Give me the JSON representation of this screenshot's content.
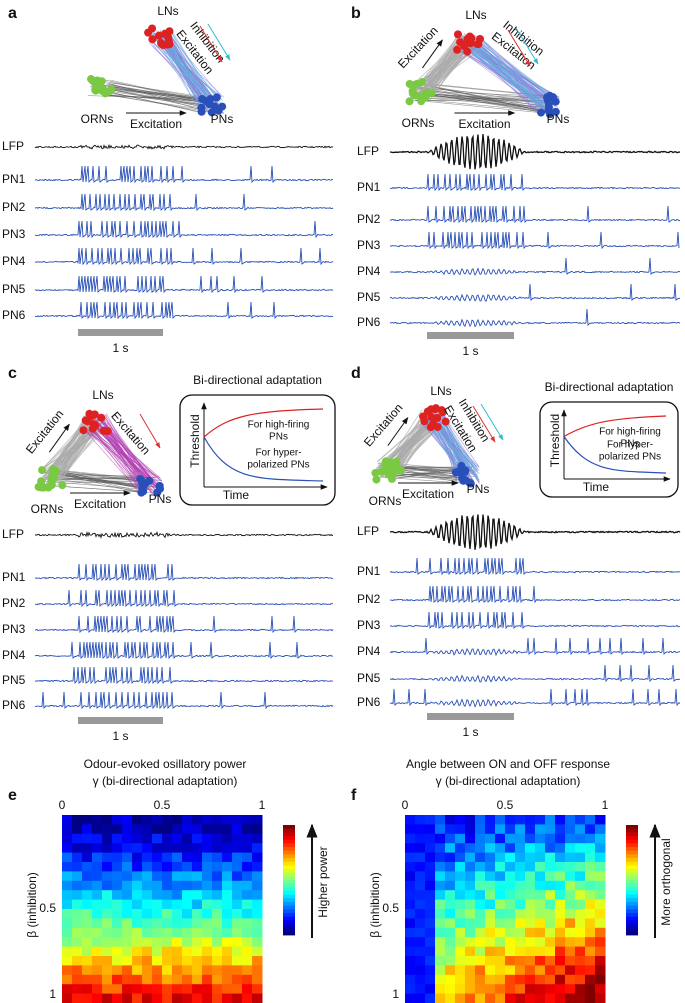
{
  "panels": [
    {
      "label": "a",
      "network": {
        "lns": "LNs",
        "orns": "ORNs",
        "pns": "PNs",
        "orn_pn": "Excitation",
        "ln_pn": [
          "Inhibition",
          "Excitation"
        ]
      },
      "traces": [
        "LFP",
        "PN1",
        "PN2",
        "PN3",
        "PN4",
        "PN5",
        "PN6"
      ],
      "scale_bar": "1 s"
    },
    {
      "label": "b",
      "network": {
        "lns": "LNs",
        "orns": "ORNs",
        "pns": "PNs",
        "orn_pn": "Excitation",
        "orn_ln": "Excitation",
        "ln_pn": [
          "Inhibition",
          "Excitation"
        ]
      },
      "traces": [
        "LFP",
        "PN1",
        "PN2",
        "PN3",
        "PN4",
        "PN5",
        "PN6"
      ],
      "scale_bar": "1 s"
    },
    {
      "label": "c",
      "network": {
        "lns": "LNs",
        "orns": "ORNs",
        "pns": "PNs",
        "orn_pn": "Excitation",
        "orn_ln": "Excitation",
        "ln_pn": [
          "Excitation"
        ]
      },
      "inset": {
        "title": "Bi-directional adaptation",
        "y_label": "Threshold",
        "x_label": "Time",
        "high": [
          "For high-firing",
          "PNs"
        ],
        "low": [
          "For hyper-",
          "polarized PNs"
        ]
      },
      "traces": [
        "LFP",
        "PN1",
        "PN2",
        "PN3",
        "PN4",
        "PN5",
        "PN6"
      ],
      "scale_bar": "1 s"
    },
    {
      "label": "d",
      "network": {
        "lns": "LNs",
        "orns": "ORNs",
        "pns": "PNs",
        "orn_pn": "Excitation",
        "orn_ln": "Excitation",
        "ln_pn": [
          "Inhibition",
          "Excitation"
        ]
      },
      "inset": {
        "title": "Bi-directional adaptation",
        "y_label": "Threshold",
        "x_label": "Time",
        "high": [
          "For high-firing",
          "PNs"
        ],
        "low": [
          "For hyper-",
          "polarized PNs"
        ]
      },
      "traces": [
        "LFP",
        "PN1",
        "PN2",
        "PN3",
        "PN4",
        "PN5",
        "PN6"
      ],
      "scale_bar": "1 s"
    }
  ],
  "heatmaps": [
    {
      "label": "e",
      "title": "Odour-evoked osillatory power",
      "x_label": "γ (bi-directional adaptation)",
      "xticks": [
        0,
        0.5,
        1
      ],
      "y_label": "β (inhibition)",
      "yticks": [
        0.5,
        1
      ],
      "colorbar_label": "Higher power"
    },
    {
      "label": "f",
      "title": "Angle between ON and OFF response",
      "x_label": "γ (bi-directional adaptation)",
      "xticks": [
        0,
        0.5,
        1
      ],
      "y_label": "β (inhibition)",
      "yticks": [
        0.5,
        1
      ],
      "colorbar_label": "More orthogonal"
    }
  ]
}
